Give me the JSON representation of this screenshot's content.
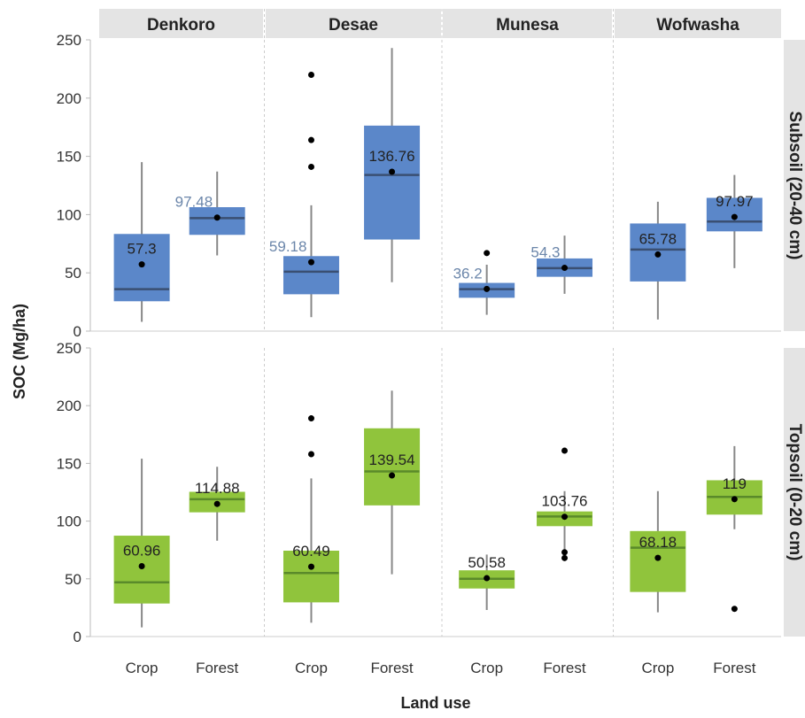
{
  "chart_data": {
    "type": "boxplot",
    "xlabel": "Land use",
    "ylabel": "SOC (Mg/ha)",
    "ylim": [
      0,
      250
    ],
    "yticks": [
      0,
      50,
      100,
      150,
      200,
      250
    ],
    "facet_columns": [
      "Denkoro",
      "Desae",
      "Munesa",
      "Wofwasha"
    ],
    "facet_rows": [
      "Subsoil (20-40 cm)",
      "Topsoil (0-20 cm)"
    ],
    "categories": [
      "Crop",
      "Forest"
    ],
    "grid": false,
    "colors": {
      "Subsoil (20-40 cm)": {
        "fill": "#5b87c9",
        "median": "#3a4f72",
        "label_dark": "#222222",
        "label_light": "#6b86aa"
      },
      "Topsoil (0-20 cm)": {
        "fill": "#90c43c",
        "median": "#5a8a2a",
        "label_dark": "#222222",
        "label_light": "#222222"
      },
      "whisker": "#888888",
      "mean_dot": "#000000",
      "strip_bg": "#e4e4e4"
    },
    "panels": [
      {
        "row": "Subsoil (20-40 cm)",
        "col": "Denkoro",
        "boxes": [
          {
            "category": "Crop",
            "whisker_low": 8,
            "q1": 26,
            "median": 36,
            "q3": 83,
            "whisker_high": 145,
            "mean": 57.3,
            "mean_label": "57.3",
            "label_style": "dark",
            "outliers": []
          },
          {
            "category": "Forest",
            "whisker_low": 65,
            "q1": 83,
            "median": 97,
            "q3": 106,
            "whisker_high": 137,
            "mean": 97.48,
            "mean_label": "97.48",
            "label_style": "light",
            "outliers": []
          }
        ]
      },
      {
        "row": "Subsoil (20-40 cm)",
        "col": "Desae",
        "boxes": [
          {
            "category": "Crop",
            "whisker_low": 12,
            "q1": 32,
            "median": 51,
            "q3": 64,
            "whisker_high": 108,
            "mean": 59.18,
            "mean_label": "59.18",
            "label_style": "light",
            "outliers": [
              141,
              164,
              220
            ]
          },
          {
            "category": "Forest",
            "whisker_low": 42,
            "q1": 79,
            "median": 134,
            "q3": 176,
            "whisker_high": 243,
            "mean": 136.76,
            "mean_label": "136.76",
            "label_style": "dark",
            "outliers": []
          }
        ]
      },
      {
        "row": "Subsoil (20-40 cm)",
        "col": "Munesa",
        "boxes": [
          {
            "category": "Crop",
            "whisker_low": 14,
            "q1": 29,
            "median": 36,
            "q3": 41,
            "whisker_high": 57,
            "mean": 36.2,
            "mean_label": "36.2",
            "label_style": "light",
            "outliers": [
              67
            ]
          },
          {
            "category": "Forest",
            "whisker_low": 32,
            "q1": 47,
            "median": 54,
            "q3": 62,
            "whisker_high": 82,
            "mean": 54.3,
            "mean_label": "54.3",
            "label_style": "light",
            "outliers": []
          }
        ]
      },
      {
        "row": "Subsoil (20-40 cm)",
        "col": "Wofwasha",
        "boxes": [
          {
            "category": "Crop",
            "whisker_low": 10,
            "q1": 43,
            "median": 70,
            "q3": 92,
            "whisker_high": 111,
            "mean": 65.78,
            "mean_label": "65.78",
            "label_style": "dark",
            "outliers": []
          },
          {
            "category": "Forest",
            "whisker_low": 54,
            "q1": 86,
            "median": 94,
            "q3": 114,
            "whisker_high": 134,
            "mean": 97.97,
            "mean_label": "97.97",
            "label_style": "dark",
            "outliers": []
          }
        ]
      },
      {
        "row": "Topsoil (0-20 cm)",
        "col": "Denkoro",
        "boxes": [
          {
            "category": "Crop",
            "whisker_low": 8,
            "q1": 29,
            "median": 47,
            "q3": 87,
            "whisker_high": 154,
            "mean": 60.96,
            "mean_label": "60.96",
            "label_style": "dark",
            "outliers": []
          },
          {
            "category": "Forest",
            "whisker_low": 83,
            "q1": 108,
            "median": 119,
            "q3": 125,
            "whisker_high": 147,
            "mean": 114.88,
            "mean_label": "114.88",
            "label_style": "dark",
            "outliers": []
          }
        ]
      },
      {
        "row": "Topsoil (0-20 cm)",
        "col": "Desae",
        "boxes": [
          {
            "category": "Crop",
            "whisker_low": 12,
            "q1": 30,
            "median": 55,
            "q3": 74,
            "whisker_high": 137,
            "mean": 60.49,
            "mean_label": "60.49",
            "label_style": "dark",
            "outliers": [
              158,
              189
            ]
          },
          {
            "category": "Forest",
            "whisker_low": 54,
            "q1": 114,
            "median": 143,
            "q3": 180,
            "whisker_high": 213,
            "mean": 139.54,
            "mean_label": "139.54",
            "label_style": "dark",
            "outliers": []
          }
        ]
      },
      {
        "row": "Topsoil (0-20 cm)",
        "col": "Munesa",
        "boxes": [
          {
            "category": "Crop",
            "whisker_low": 23,
            "q1": 42,
            "median": 50,
            "q3": 57,
            "whisker_high": 71,
            "mean": 50.58,
            "mean_label": "50.58",
            "label_style": "dark",
            "outliers": []
          },
          {
            "category": "Forest",
            "whisker_low": 73,
            "q1": 96,
            "median": 104,
            "q3": 108,
            "whisker_high": 126,
            "mean": 103.76,
            "mean_label": "103.76",
            "label_style": "dark",
            "outliers": [
              68,
              73,
              161
            ]
          }
        ]
      },
      {
        "row": "Topsoil (0-20 cm)",
        "col": "Wofwasha",
        "boxes": [
          {
            "category": "Crop",
            "whisker_low": 21,
            "q1": 39,
            "median": 77,
            "q3": 91,
            "whisker_high": 126,
            "mean": 68.18,
            "mean_label": "68.18",
            "label_style": "dark",
            "outliers": []
          },
          {
            "category": "Forest",
            "whisker_low": 93,
            "q1": 106,
            "median": 121,
            "q3": 135,
            "whisker_high": 165,
            "mean": 119,
            "mean_label": "119",
            "label_style": "dark",
            "outliers": [
              24
            ]
          }
        ]
      }
    ]
  }
}
